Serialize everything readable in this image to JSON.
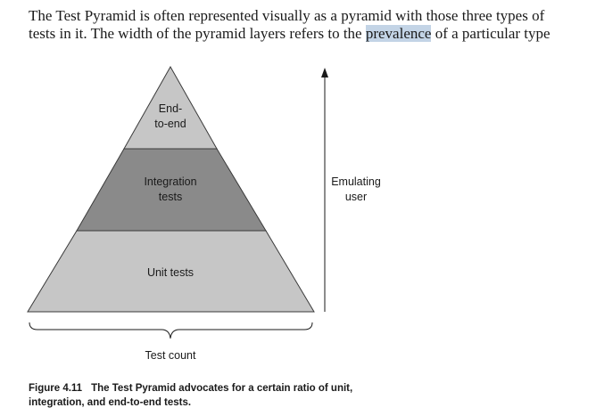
{
  "paragraph": {
    "line1": "The Test Pyramid is often represented visually as a pyramid with those three types of",
    "line2_before": "tests in it. The width of the pyramid layers refers to the ",
    "line2_highlight": "prevalence",
    "line2_after": " of a particular type"
  },
  "figure": {
    "layers": {
      "top": [
        "End-",
        "to-end"
      ],
      "middle": [
        "Integration",
        "tests"
      ],
      "bottom": "Unit tests"
    },
    "arrow_label": [
      "Emulating",
      "user"
    ],
    "x_label": "Test count",
    "colors": {
      "top": "#c6c6c6",
      "middle": "#8a8a8a",
      "bottom": "#c6c6c6",
      "highlight": "#c3d4e6"
    }
  },
  "caption": {
    "label": "Figure 4.11",
    "line1": "The Test Pyramid advocates for a certain ratio of unit,",
    "line2": "integration, and end-to-end tests."
  }
}
